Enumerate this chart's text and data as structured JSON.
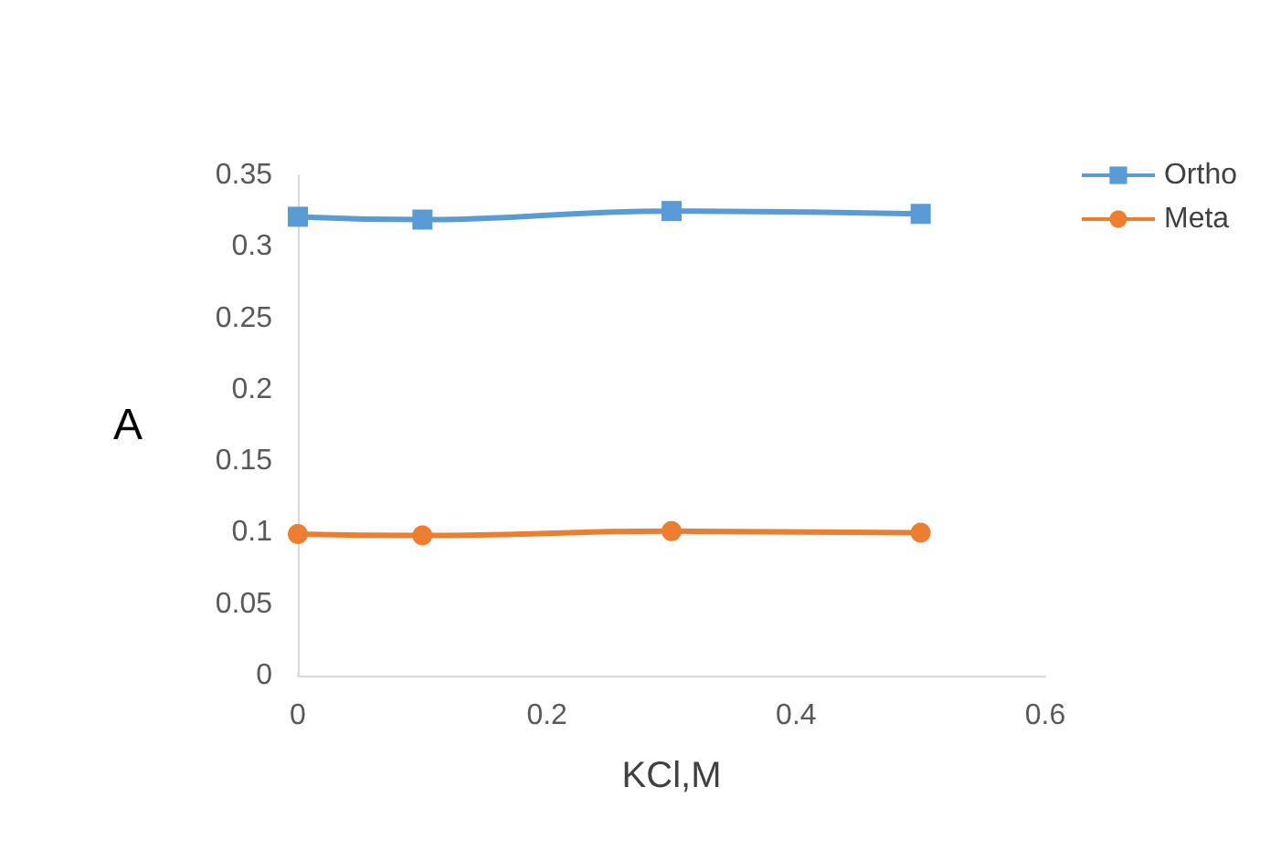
{
  "chart_data": {
    "type": "line",
    "xlabel": "KCl,M",
    "ylabel": "A",
    "x": [
      0,
      0.1,
      0.3,
      0.5
    ],
    "series": [
      {
        "name": "Ortho",
        "color": "#5b9bd5",
        "marker": "square",
        "values": [
          0.321,
          0.319,
          0.325,
          0.323
        ]
      },
      {
        "name": "Meta",
        "color": "#ed7d31",
        "marker": "circle",
        "values": [
          0.099,
          0.098,
          0.101,
          0.1
        ]
      }
    ],
    "xlim": [
      0,
      0.6
    ],
    "xticks": [
      0,
      0.2,
      0.4,
      0.6
    ],
    "ylim": [
      0,
      0.35
    ],
    "yticks": [
      0,
      0.05,
      0.1,
      0.15,
      0.2,
      0.25,
      0.3,
      0.35
    ],
    "grid": false,
    "legend": "top right"
  }
}
